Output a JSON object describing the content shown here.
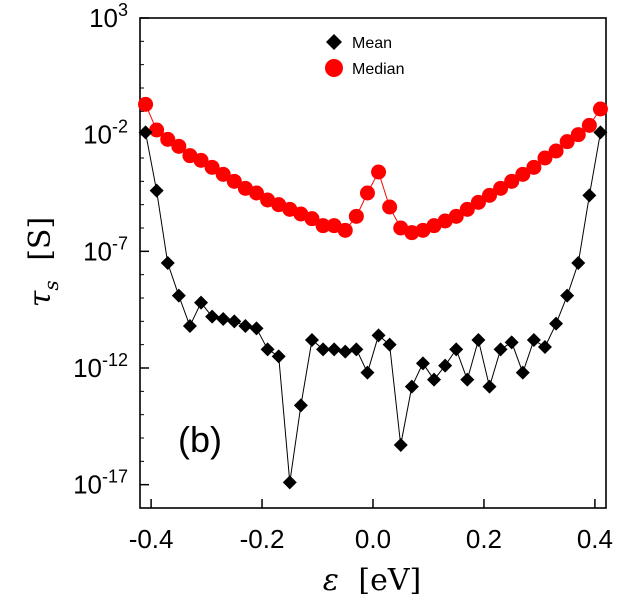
{
  "chart_data": {
    "type": "scatter",
    "xlabel": "ε [eV]",
    "ylabel": "τs [S]",
    "ylabel_symbol": "τ",
    "ylabel_subscript": "s",
    "ylabel_unit": "[S]",
    "xlabel_symbol": "ε",
    "xlabel_unit": "[eV]",
    "yscale": "log",
    "xlim": [
      -0.42,
      0.42
    ],
    "ylim_exp": [
      -18,
      3
    ],
    "x_ticks": [
      -0.4,
      -0.2,
      0.0,
      0.2,
      0.4
    ],
    "x_tick_labels": [
      "-0.4",
      "-0.2",
      "0.0",
      "0.2",
      "0.4"
    ],
    "y_tick_exps": [
      3,
      -2,
      -7,
      -12,
      -17
    ],
    "y_tick_base": "10",
    "y_tick_exp_labels": [
      "3",
      "-2",
      "-7",
      "-12",
      "-17"
    ],
    "grid": false,
    "legend_position": "top-center",
    "panel_label": "(b)",
    "series": [
      {
        "name": "Mean",
        "marker": "diamond",
        "color": "#000000",
        "line_color": "#000000",
        "x": [
          -0.41,
          -0.39,
          -0.37,
          -0.35,
          -0.33,
          -0.31,
          -0.29,
          -0.27,
          -0.25,
          -0.23,
          -0.21,
          -0.19,
          -0.17,
          -0.15,
          -0.13,
          -0.11,
          -0.09,
          -0.07,
          -0.05,
          -0.03,
          -0.01,
          0.01,
          0.03,
          0.05,
          0.07,
          0.09,
          0.11,
          0.13,
          0.15,
          0.17,
          0.19,
          0.21,
          0.23,
          0.25,
          0.27,
          0.29,
          0.31,
          0.33,
          0.35,
          0.37,
          0.39,
          0.41
        ],
        "y_exp": [
          -1.9,
          -4.4,
          -7.5,
          -8.9,
          -10.2,
          -9.2,
          -9.8,
          -9.9,
          -10.0,
          -10.2,
          -10.3,
          -11.2,
          -11.5,
          -16.9,
          -13.6,
          -10.8,
          -11.2,
          -11.2,
          -11.3,
          -11.2,
          -12.2,
          -10.6,
          -11.0,
          -15.3,
          -12.8,
          -11.8,
          -12.5,
          -11.9,
          -11.2,
          -12.5,
          -10.8,
          -12.8,
          -11.2,
          -10.9,
          -12.2,
          -10.8,
          -11.1,
          -10.1,
          -8.9,
          -7.5,
          -4.6,
          -1.9
        ]
      },
      {
        "name": "Median",
        "marker": "circle",
        "color": "#ff0000",
        "line_color": "#ff0000",
        "x": [
          -0.41,
          -0.39,
          -0.37,
          -0.35,
          -0.33,
          -0.31,
          -0.29,
          -0.27,
          -0.25,
          -0.23,
          -0.21,
          -0.19,
          -0.17,
          -0.15,
          -0.13,
          -0.11,
          -0.09,
          -0.07,
          -0.05,
          -0.03,
          -0.01,
          0.01,
          0.03,
          0.05,
          0.07,
          0.09,
          0.11,
          0.13,
          0.15,
          0.17,
          0.19,
          0.21,
          0.23,
          0.25,
          0.27,
          0.29,
          0.31,
          0.33,
          0.35,
          0.37,
          0.39,
          0.41
        ],
        "y_exp": [
          -0.7,
          -1.8,
          -2.2,
          -2.5,
          -2.9,
          -3.1,
          -3.4,
          -3.7,
          -4.0,
          -4.3,
          -4.5,
          -4.8,
          -5.0,
          -5.2,
          -5.4,
          -5.6,
          -5.9,
          -5.9,
          -6.1,
          -5.5,
          -4.5,
          -3.6,
          -5.1,
          -6.0,
          -6.2,
          -6.1,
          -5.9,
          -5.7,
          -5.5,
          -5.2,
          -4.9,
          -4.6,
          -4.3,
          -4.0,
          -3.7,
          -3.4,
          -3.0,
          -2.7,
          -2.3,
          -2.0,
          -1.6,
          -0.9
        ]
      }
    ]
  }
}
